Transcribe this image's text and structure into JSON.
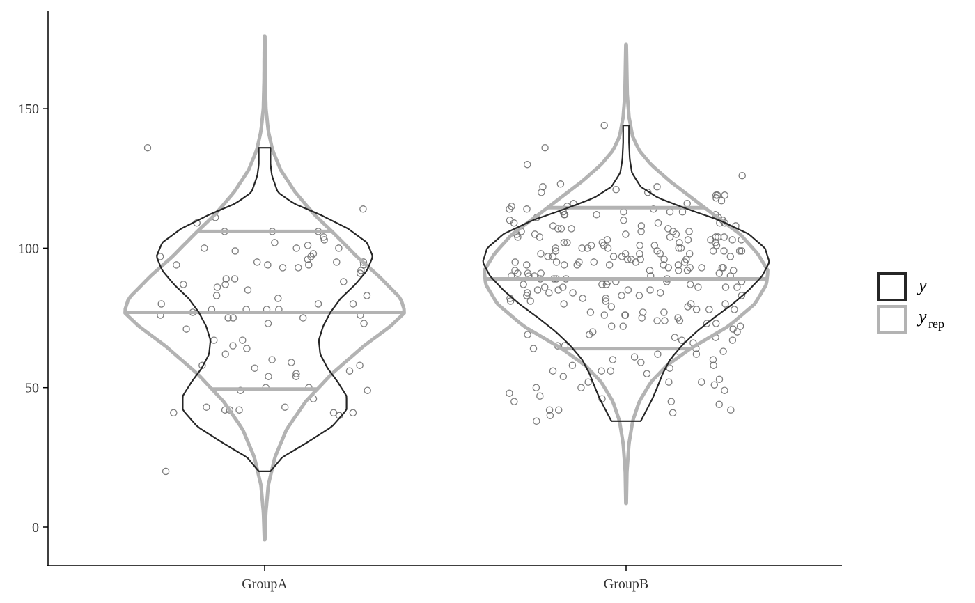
{
  "chart_data": {
    "type": "violin",
    "xlabel": "",
    "ylabel": "",
    "categories": [
      "GroupA",
      "GroupB"
    ],
    "ylim": [
      -14,
      185
    ],
    "y_ticks": [
      0,
      50,
      100,
      150
    ],
    "grid": false,
    "legend_position": "right",
    "legend": [
      {
        "key": "y",
        "label": "y",
        "subscript": "",
        "color": "#262626"
      },
      {
        "key": "yrep",
        "label": "y",
        "subscript": "rep",
        "color": "#b3b3b3"
      }
    ],
    "colors": {
      "y": "#262626",
      "yrep": "#b3b3b3",
      "points": "#666666",
      "axis": "#000000"
    },
    "violins": {
      "yrep": [
        {
          "group": "GroupA",
          "min": -4.5,
          "max": 176,
          "quantiles": [
            49.5,
            77,
            106
          ],
          "profile": [
            [
              -4.5,
              0.002
            ],
            [
              5,
              0.008
            ],
            [
              15,
              0.025
            ],
            [
              25,
              0.07
            ],
            [
              35,
              0.15
            ],
            [
              45,
              0.28
            ],
            [
              55,
              0.46
            ],
            [
              65,
              0.68
            ],
            [
              72,
              0.86
            ],
            [
              77,
              0.96
            ],
            [
              82,
              0.93
            ],
            [
              90,
              0.78
            ],
            [
              97,
              0.63
            ],
            [
              105,
              0.48
            ],
            [
              112,
              0.34
            ],
            [
              120,
              0.21
            ],
            [
              128,
              0.11
            ],
            [
              135,
              0.055
            ],
            [
              142,
              0.025
            ],
            [
              150,
              0.009
            ],
            [
              160,
              0.004
            ],
            [
              176,
              0.002
            ]
          ]
        },
        {
          "group": "GroupB",
          "min": 8.5,
          "max": 173,
          "quantiles": [
            64,
            89,
            114.5
          ],
          "profile": [
            [
              8.5,
              0.002
            ],
            [
              20,
              0.006
            ],
            [
              30,
              0.02
            ],
            [
              38,
              0.045
            ],
            [
              45,
              0.09
            ],
            [
              52,
              0.17
            ],
            [
              58,
              0.28
            ],
            [
              64,
              0.44
            ],
            [
              72,
              0.7
            ],
            [
              80,
              0.88
            ],
            [
              87,
              0.96
            ],
            [
              92,
              0.97
            ],
            [
              98,
              0.9
            ],
            [
              105,
              0.78
            ],
            [
              112,
              0.6
            ],
            [
              118,
              0.45
            ],
            [
              124,
              0.3
            ],
            [
              130,
              0.17
            ],
            [
              135,
              0.09
            ],
            [
              140,
              0.045
            ],
            [
              147,
              0.02
            ],
            [
              155,
              0.008
            ],
            [
              173,
              0.002
            ]
          ]
        }
      ],
      "y": [
        {
          "group": "GroupA",
          "min": 20,
          "max": 136,
          "profile": [
            [
              20,
              0.04
            ],
            [
              25,
              0.12
            ],
            [
              30,
              0.28
            ],
            [
              36,
              0.46
            ],
            [
              42,
              0.56
            ],
            [
              47,
              0.56
            ],
            [
              52,
              0.5
            ],
            [
              57,
              0.43
            ],
            [
              62,
              0.38
            ],
            [
              67,
              0.37
            ],
            [
              72,
              0.4
            ],
            [
              77,
              0.45
            ],
            [
              82,
              0.52
            ],
            [
              87,
              0.62
            ],
            [
              92,
              0.7
            ],
            [
              97,
              0.74
            ],
            [
              102,
              0.7
            ],
            [
              107,
              0.57
            ],
            [
              112,
              0.38
            ],
            [
              116,
              0.2
            ],
            [
              120,
              0.09
            ],
            [
              126,
              0.05
            ],
            [
              130,
              0.04
            ],
            [
              136,
              0.04
            ]
          ]
        },
        {
          "group": "GroupB",
          "min": 38,
          "max": 144,
          "profile": [
            [
              38,
              0.1
            ],
            [
              42,
              0.14
            ],
            [
              46,
              0.18
            ],
            [
              51,
              0.22
            ],
            [
              55,
              0.25
            ],
            [
              60,
              0.3
            ],
            [
              65,
              0.38
            ],
            [
              70,
              0.48
            ],
            [
              75,
              0.6
            ],
            [
              80,
              0.73
            ],
            [
              85,
              0.84
            ],
            [
              90,
              0.93
            ],
            [
              95,
              0.98
            ],
            [
              100,
              0.95
            ],
            [
              105,
              0.84
            ],
            [
              110,
              0.64
            ],
            [
              114,
              0.42
            ],
            [
              118,
              0.22
            ],
            [
              122,
              0.1
            ],
            [
              127,
              0.04
            ],
            [
              132,
              0.025
            ],
            [
              138,
              0.02
            ],
            [
              144,
              0.02
            ]
          ]
        }
      ]
    },
    "points": [
      {
        "group": "GroupA",
        "y": [
          136,
          114,
          111,
          109,
          106,
          106,
          106,
          104,
          103,
          102,
          101,
          100,
          100,
          100,
          99,
          98,
          97,
          97,
          96,
          95,
          95,
          95,
          94,
          94,
          94,
          94,
          93,
          93,
          92,
          91,
          89,
          89,
          88,
          87,
          87,
          86,
          85,
          83,
          83,
          82,
          80,
          80,
          80,
          78,
          78,
          78,
          78,
          77,
          76,
          76,
          75,
          75,
          75,
          73,
          73,
          71,
          67,
          67,
          65,
          64,
          62,
          60,
          59,
          58,
          58,
          57,
          56,
          55,
          54,
          54,
          50,
          50,
          49,
          49,
          46,
          43,
          43,
          42,
          42,
          42,
          41,
          41,
          41,
          40,
          20
        ]
      },
      {
        "group": "GroupB",
        "y": [
          144,
          136,
          130,
          126,
          123,
          122,
          122,
          121,
          120,
          120,
          119,
          119,
          119,
          118,
          117,
          116,
          116,
          115,
          115,
          114,
          114,
          114,
          113,
          113,
          113,
          113,
          112,
          112,
          112,
          112,
          111,
          111,
          110,
          110,
          110,
          109,
          109,
          109,
          109,
          108,
          108,
          108,
          107,
          107,
          107,
          107,
          106,
          106,
          106,
          106,
          105,
          105,
          105,
          105,
          104,
          104,
          104,
          104,
          104,
          104,
          103,
          103,
          103,
          103,
          103,
          102,
          102,
          102,
          102,
          102,
          101,
          101,
          101,
          101,
          101,
          100,
          100,
          100,
          100,
          100,
          100,
          99,
          99,
          99,
          99,
          99,
          99,
          98,
          98,
          98,
          98,
          98,
          97,
          97,
          97,
          97,
          97,
          96,
          96,
          96,
          96,
          96,
          95,
          95,
          95,
          95,
          95,
          95,
          94,
          94,
          94,
          94,
          94,
          94,
          93,
          93,
          93,
          93,
          93,
          92,
          92,
          92,
          92,
          92,
          91,
          91,
          91,
          91,
          90,
          90,
          90,
          90,
          90,
          89,
          89,
          89,
          89,
          89,
          88,
          88,
          88,
          88,
          87,
          87,
          87,
          87,
          86,
          86,
          86,
          86,
          86,
          85,
          85,
          85,
          85,
          84,
          84,
          84,
          84,
          83,
          83,
          83,
          83,
          82,
          82,
          82,
          81,
          81,
          81,
          80,
          80,
          80,
          79,
          79,
          78,
          78,
          78,
          77,
          77,
          77,
          76,
          76,
          76,
          75,
          75,
          74,
          74,
          74,
          73,
          73,
          72,
          72,
          72,
          71,
          70,
          70,
          69,
          69,
          68,
          68,
          67,
          67,
          66,
          65,
          65,
          64,
          64,
          63,
          62,
          62,
          61,
          61,
          60,
          60,
          59,
          58,
          58,
          57,
          56,
          56,
          56,
          55,
          54,
          53,
          52,
          52,
          52,
          51,
          50,
          50,
          49,
          48,
          47,
          46,
          45,
          45,
          44,
          42,
          42,
          42,
          41,
          40,
          38
        ]
      }
    ]
  }
}
